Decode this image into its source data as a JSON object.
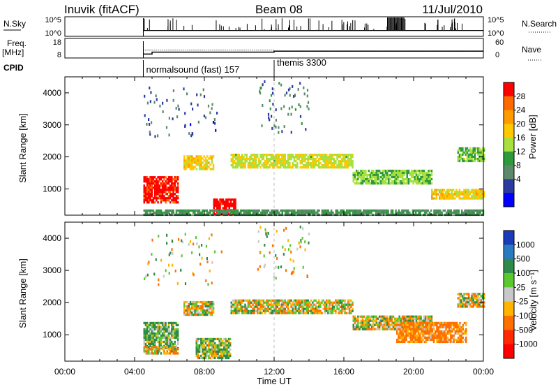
{
  "header": {
    "station": "Inuvik (fitACF)",
    "beam": "Beam 08",
    "date": "11/Jul/2010"
  },
  "labels": {
    "nsky": "N.Sky",
    "nsearch": "N.Search",
    "freq": "Freq.",
    "mhz": "[MHz]",
    "nave": "Nave",
    "cpid": "CPID",
    "slant_range": "Slant Range [km]",
    "power_label": "Power [dB]",
    "velocity_label": "Velocity [m s⁻¹]",
    "time_ut": "Time UT"
  },
  "top_ticks": {
    "nsky_left": [
      "10^5",
      "10^0"
    ],
    "nsky_right": [
      "10^5",
      "10^0"
    ],
    "freq_left": [
      "18",
      "8"
    ],
    "nave_right": [
      "60",
      "0"
    ]
  },
  "cpid": [
    {
      "start": "04:30",
      "label": "normalsound (fast) 157"
    },
    {
      "start": "12:00",
      "label": "themis 3300"
    }
  ],
  "power_colorbar": {
    "ticks": [
      "28",
      "24",
      "20",
      "16",
      "12",
      "8",
      "4"
    ],
    "colors": [
      "#ff0000",
      "#ff6a00",
      "#ff9a00",
      "#ffc800",
      "#a8e040",
      "#2e9a3c",
      "#5a8a6a",
      "#2a3aa0",
      "#0000ff"
    ]
  },
  "velocity_colorbar": {
    "ticks": [
      "1000",
      "500",
      "100",
      "25",
      "-25",
      "-100",
      "-500",
      "-1000"
    ],
    "colors": [
      "#1a3ab8",
      "#2a7ac0",
      "#2e8a4a",
      "#5cc830",
      "#c8c8c8",
      "#ffb400",
      "#ff7000",
      "#ff2a00",
      "#ff0000"
    ]
  },
  "chart_data": {
    "type": "heatmap",
    "x": {
      "label": "Time UT",
      "ticks": [
        "00:00",
        "04:00",
        "08:00",
        "12:00",
        "16:00",
        "20:00",
        "00:00"
      ],
      "range_hours": [
        0,
        24
      ]
    },
    "y": {
      "label": "Slant Range [km]",
      "ticks": [
        "1000",
        "2000",
        "3000",
        "4000"
      ],
      "range": [
        180,
        4500
      ]
    },
    "panels": [
      {
        "name": "power",
        "unit": "dB",
        "range": [
          0,
          30
        ],
        "regions": [
          {
            "t": [
              4.5,
              6.5
            ],
            "r": [
              600,
              1400
            ],
            "v": 28
          },
          {
            "t": [
              6.8,
              8.5
            ],
            "r": [
              1600,
              2050
            ],
            "v": 18
          },
          {
            "t": [
              8.5,
              9.8
            ],
            "r": [
              200,
              700
            ],
            "v": 29
          },
          {
            "t": [
              9.5,
              16.5
            ],
            "r": [
              1700,
              2100
            ],
            "v": 16
          },
          {
            "t": [
              16.5,
              21.0
            ],
            "r": [
              1200,
              1600
            ],
            "v": 14
          },
          {
            "t": [
              21.0,
              24.0
            ],
            "r": [
              700,
              1000
            ],
            "v": 18
          },
          {
            "t": [
              22.5,
              24.0
            ],
            "r": [
              1900,
              2300
            ],
            "v": 14
          },
          {
            "t": [
              4.5,
              24.0
            ],
            "r": [
              200,
              360
            ],
            "v": 10
          }
        ],
        "scatter": [
          {
            "t": [
              4.5,
              9.0
            ],
            "r": [
              2600,
              4200
            ],
            "v": 6
          },
          {
            "t": [
              11.0,
              14.0
            ],
            "r": [
              2800,
              4400
            ],
            "v": 8
          }
        ]
      },
      {
        "name": "velocity",
        "unit": "m/s",
        "range": [
          -1000,
          1000
        ],
        "regions": [
          {
            "t": [
              4.5,
              6.5
            ],
            "r": [
              600,
              1400
            ],
            "v": 120
          },
          {
            "t": [
              4.5,
              6.5
            ],
            "r": [
              450,
              650
            ],
            "v": -60
          },
          {
            "t": [
              6.8,
              8.5
            ],
            "r": [
              1600,
              2050
            ],
            "v": 0
          },
          {
            "t": [
              9.5,
              16.5
            ],
            "r": [
              1700,
              2100
            ],
            "v": 0
          },
          {
            "t": [
              16.5,
              21.0
            ],
            "r": [
              1200,
              1600
            ],
            "v": 0
          },
          {
            "t": [
              19.0,
              23.0
            ],
            "r": [
              800,
              1400
            ],
            "v": -180
          },
          {
            "t": [
              22.5,
              24.0
            ],
            "r": [
              1900,
              2300
            ],
            "v": 0
          },
          {
            "t": [
              7.5,
              9.5
            ],
            "r": [
              250,
              900
            ],
            "v": 60
          }
        ],
        "scatter": [
          {
            "t": [
              4.5,
              9.0
            ],
            "r": [
              2600,
              4200
            ],
            "v": 10
          },
          {
            "t": [
              11.0,
              14.0
            ],
            "r": [
              2800,
              4400
            ],
            "v": 0
          }
        ]
      }
    ],
    "nsky": {
      "start_hours": 4.5,
      "level_fraction": 0.3
    },
    "freq_mhz": [
      {
        "t": [
          4.5,
          5.0
        ],
        "v": 10
      },
      {
        "t": [
          5.0,
          12.0
        ],
        "v": 11
      },
      {
        "t": [
          12.0,
          24.0
        ],
        "v": 11.5
      }
    ]
  }
}
